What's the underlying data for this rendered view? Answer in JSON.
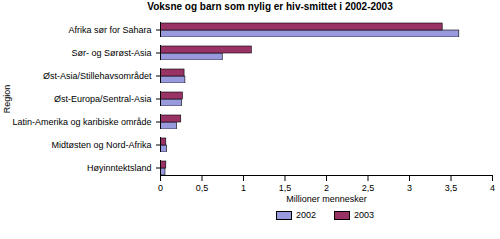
{
  "chart_data": {
    "type": "bar",
    "orientation": "horizontal",
    "title": "Voksne og barn som nylig er hiv-smittet i 2002-2003",
    "x_label": "Millioner mennesker",
    "y_label": "Region",
    "categories": [
      "Afrika sør for Sahara",
      "Sør- og Sørøst-Asia",
      "Øst-Asia/Stillehavsområdet",
      "Øst-Europa/Sentral-Asia",
      "Latin-Amerika og karibiske område",
      "Midtøsten og Nord-Afrika",
      "Høyinntektsland"
    ],
    "series": [
      {
        "name": "2002",
        "color": "#9999dd",
        "values": [
          3.6,
          0.75,
          0.3,
          0.26,
          0.2,
          0.08,
          0.06
        ]
      },
      {
        "name": "2003",
        "color": "#993366",
        "values": [
          3.4,
          1.1,
          0.29,
          0.27,
          0.25,
          0.07,
          0.07
        ]
      }
    ],
    "xlim": [
      0,
      4
    ],
    "xticks": [
      0,
      {
        "value": 0.5,
        "label": "0,5"
      },
      1,
      {
        "value": 1.5,
        "label": "1,5"
      },
      2,
      {
        "value": 2.5,
        "label": "2,5"
      },
      3,
      {
        "value": 3.5,
        "label": "3,5"
      },
      4
    ],
    "grid": false,
    "legend": "bottom"
  }
}
